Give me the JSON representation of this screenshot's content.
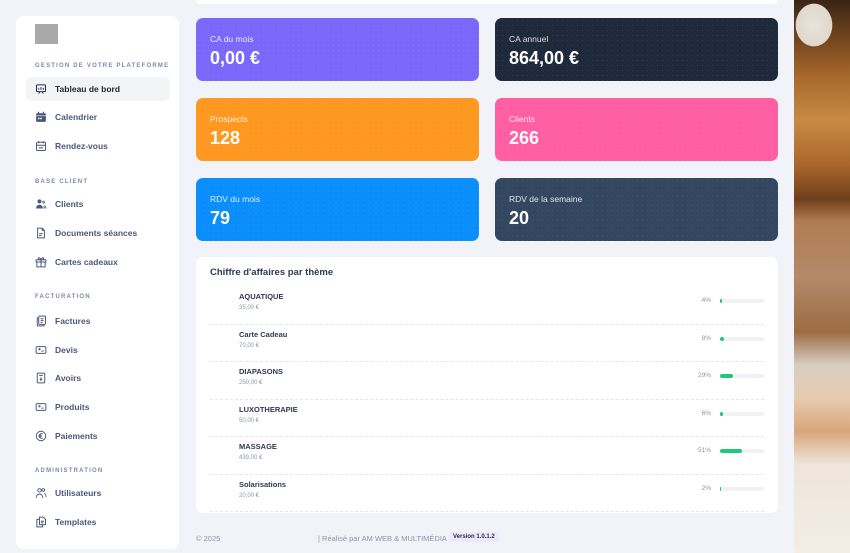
{
  "sidebar": {
    "sections": [
      {
        "title": "GESTION DE VOTRE PLATEFORME",
        "items": [
          {
            "label": "Tableau de bord",
            "icon": "presentation-chart-icon",
            "active": true
          },
          {
            "label": "Calendrier",
            "icon": "calendar-filled-icon"
          },
          {
            "label": "Rendez-vous",
            "icon": "calendar-icon"
          }
        ]
      },
      {
        "title": "BASE CLIENT",
        "items": [
          {
            "label": "Clients",
            "icon": "users-icon"
          },
          {
            "label": "Documents séances",
            "icon": "document-icon"
          },
          {
            "label": "Cartes cadeaux",
            "icon": "gift-icon"
          }
        ]
      },
      {
        "title": "FACTURATION",
        "items": [
          {
            "label": "Factures",
            "icon": "invoice-stack-icon"
          },
          {
            "label": "Devis",
            "icon": "ticket-icon"
          },
          {
            "label": "Avoirs",
            "icon": "receipt-icon"
          },
          {
            "label": "Produits",
            "icon": "product-icon"
          },
          {
            "label": "Paiements",
            "icon": "euro-circle-icon"
          }
        ]
      },
      {
        "title": "ADMINISTRATION",
        "items": [
          {
            "label": "Utilisateurs",
            "icon": "user-group-icon"
          },
          {
            "label": "Templates",
            "icon": "copy-icon"
          }
        ]
      }
    ]
  },
  "cards": [
    {
      "label": "CA du mois",
      "value": "0,00 €",
      "color": "#7b68fa"
    },
    {
      "label": "CA annuel",
      "value": "864,00 €",
      "color": "#1e293b"
    },
    {
      "label": "Prospects",
      "value": "128",
      "color": "#ff9820"
    },
    {
      "label": "Clients",
      "value": "266",
      "color": "#ff5fa2"
    },
    {
      "label": "RDV du mois",
      "value": "79",
      "color": "#0a8efb"
    },
    {
      "label": "RDV de la semaine",
      "value": "20",
      "color": "#334760"
    }
  ],
  "themes": {
    "title": "Chiffre d'affaires par thème",
    "bar_color": "#1ec97a",
    "rows": [
      {
        "name": "AQUATIQUE",
        "amount": "35,00 €",
        "percent": "4%",
        "pct": 4
      },
      {
        "name": "Carte Cadeau",
        "amount": "70,00 €",
        "percent": "8%",
        "pct": 8
      },
      {
        "name": "DIAPASONS",
        "amount": "250,00 €",
        "percent": "29%",
        "pct": 29
      },
      {
        "name": "LUXOTHERAPIE",
        "amount": "50,00 €",
        "percent": "6%",
        "pct": 6
      },
      {
        "name": "MASSAGE",
        "amount": "439,00 €",
        "percent": "51%",
        "pct": 51
      },
      {
        "name": "Solarisations",
        "amount": "20,00 €",
        "percent": "2%",
        "pct": 2
      }
    ]
  },
  "footer": {
    "copyright": "© 2025",
    "credit": "| Réalisé par AM WEB & MULTIMÉDIA",
    "version": "Version 1.0.1.2"
  }
}
